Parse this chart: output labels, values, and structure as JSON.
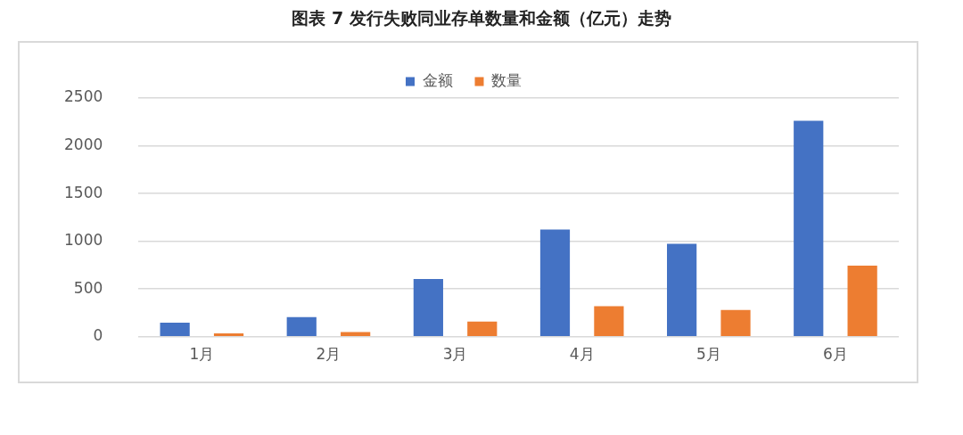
{
  "chart_data": {
    "type": "bar",
    "title": "图表 7 发行失败同业存单数量和金额（亿元）走势",
    "categories": [
      "1月",
      "2月",
      "3月",
      "4月",
      "5月",
      "6月"
    ],
    "series": [
      {
        "name": "金额",
        "color": "#4472c4",
        "values": [
          148,
          205,
          605,
          1122,
          973,
          2262
        ]
      },
      {
        "name": "数量",
        "color": "#ed7d31",
        "values": [
          35,
          50,
          160,
          320,
          280,
          745
        ]
      }
    ],
    "ylim": [
      0,
      2500
    ],
    "yticks": [
      0,
      500,
      1000,
      1500,
      2000,
      2500
    ],
    "grid": "y",
    "legend": "top"
  }
}
